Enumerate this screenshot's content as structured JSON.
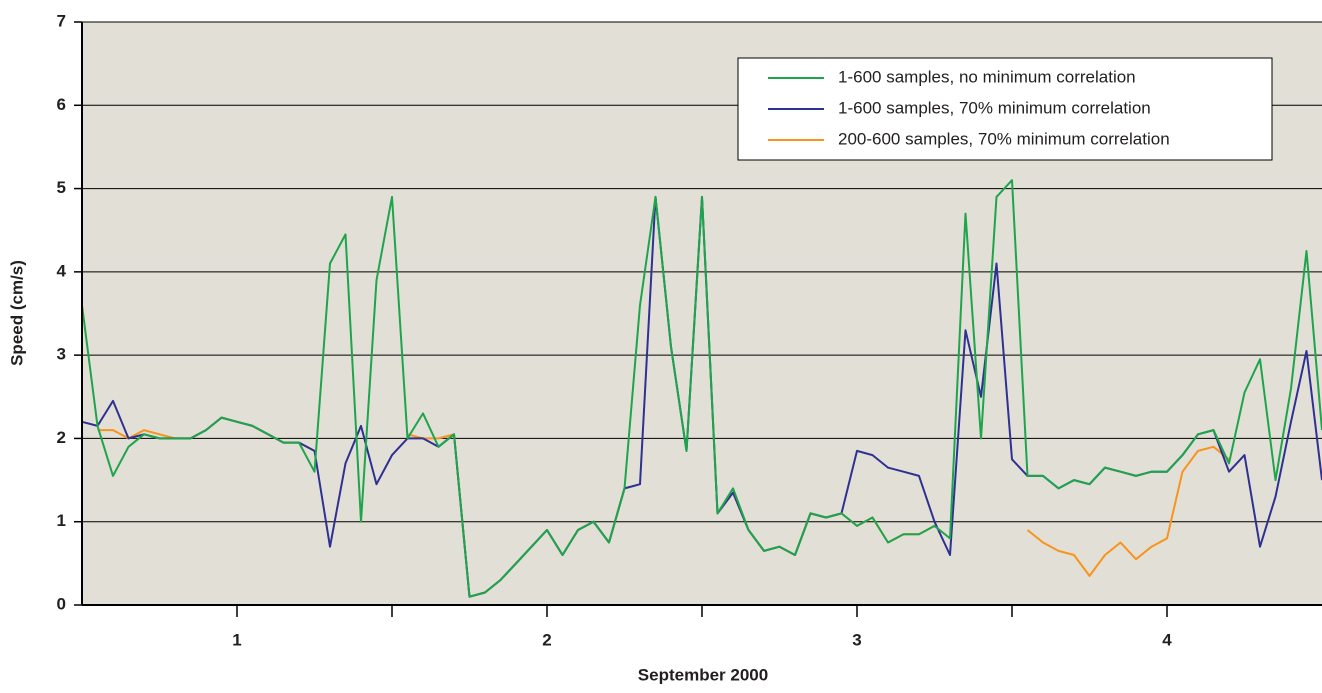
{
  "chart_data": {
    "type": "line",
    "ylabel": "Speed (cm/s)",
    "xlabel": "September 2000",
    "xlim": [
      0.5,
      4.5
    ],
    "xticks": [
      1,
      2,
      3,
      4
    ],
    "xminorticks": [
      1.5,
      2.5,
      3.5
    ],
    "ylim": [
      0,
      7
    ],
    "yticks": [
      0,
      1,
      2,
      3,
      4,
      5,
      6,
      7
    ],
    "grid": true,
    "legend": "upper right",
    "background": "#e2dfd6",
    "x": [
      0.5,
      0.55,
      0.6,
      0.65,
      0.7,
      0.75,
      0.8,
      0.85,
      0.9,
      0.95,
      1,
      1.05,
      1.1,
      1.15,
      1.2,
      1.25,
      1.3,
      1.35,
      1.4,
      1.45,
      1.5,
      1.55,
      1.6,
      1.65,
      1.7,
      1.75,
      1.8,
      1.85,
      1.9,
      1.95,
      2,
      2.05,
      2.1,
      2.15,
      2.2,
      2.25,
      2.3,
      2.35,
      2.4,
      2.45,
      2.5,
      2.55,
      2.6,
      2.65,
      2.7,
      2.75,
      2.8,
      2.85,
      2.9,
      2.95,
      3,
      3.05,
      3.1,
      3.15,
      3.2,
      3.25,
      3.3,
      3.35,
      3.4,
      3.45,
      3.5,
      3.55,
      3.6,
      3.65,
      3.7,
      3.75,
      3.8,
      3.85,
      3.9,
      3.95,
      4,
      4.05,
      4.1,
      4.15,
      4.2,
      4.25,
      4.3,
      4.35,
      4.4,
      4.45,
      4.5
    ],
    "series": [
      {
        "name": "1-600 samples, no minimum correlation",
        "color": "#1ea54c",
        "values": [
          3.6,
          2.15,
          1.55,
          1.9,
          2.05,
          2.0,
          2.0,
          2.0,
          2.1,
          2.25,
          2.2,
          2.15,
          2.05,
          1.95,
          1.95,
          1.6,
          4.1,
          4.45,
          1.0,
          3.9,
          4.9,
          2.0,
          2.3,
          1.9,
          2.05,
          0.1,
          0.15,
          0.3,
          0.5,
          0.7,
          0.9,
          0.6,
          0.9,
          1.0,
          0.75,
          1.4,
          3.6,
          4.9,
          3.1,
          1.85,
          4.9,
          1.1,
          1.4,
          0.9,
          0.65,
          0.7,
          0.6,
          1.1,
          1.05,
          1.1,
          0.95,
          1.05,
          0.75,
          0.85,
          0.85,
          0.95,
          0.8,
          4.7,
          2.0,
          4.9,
          5.1,
          1.55,
          1.55,
          1.4,
          1.5,
          1.45,
          1.65,
          1.6,
          1.55,
          1.6,
          1.6,
          1.8,
          2.05,
          2.1,
          1.7,
          2.55,
          2.95,
          1.5,
          2.6,
          4.25,
          2.1
        ]
      },
      {
        "name": "1-600 samples, 70% minimum correlation",
        "color": "#2e3192",
        "values": [
          2.2,
          2.15,
          2.45,
          2.0,
          2.05,
          2.0,
          2.0,
          2.0,
          2.1,
          2.25,
          2.2,
          2.15,
          2.05,
          1.95,
          1.95,
          1.85,
          0.7,
          1.7,
          2.15,
          1.45,
          1.8,
          2.0,
          2.0,
          1.9,
          2.05,
          0.1,
          0.15,
          0.3,
          0.5,
          0.7,
          0.9,
          0.6,
          0.9,
          1.0,
          0.75,
          1.4,
          1.45,
          4.9,
          3.1,
          1.85,
          4.9,
          1.1,
          1.35,
          0.9,
          0.65,
          0.7,
          0.6,
          1.1,
          1.05,
          1.1,
          1.85,
          1.8,
          1.65,
          1.6,
          1.55,
          1.0,
          0.6,
          3.3,
          2.5,
          4.1,
          1.75,
          1.55,
          1.55,
          1.4,
          1.5,
          1.45,
          1.65,
          1.6,
          1.55,
          1.6,
          1.6,
          1.8,
          2.05,
          2.1,
          1.6,
          1.8,
          0.7,
          1.3,
          2.2,
          3.05,
          1.5
        ]
      },
      {
        "name": "200-600 samples, 70% minimum correlation",
        "color": "#f7941d",
        "values": [
          null,
          2.1,
          2.1,
          2.0,
          2.1,
          2.05,
          2.0,
          2.0,
          2.1,
          2.25,
          2.2,
          2.15,
          2.05,
          1.95,
          1.95,
          1.85,
          null,
          null,
          null,
          null,
          null,
          2.05,
          2.0,
          2.0,
          2.05,
          0.1,
          0.15,
          0.3,
          0.5,
          0.7,
          0.9,
          0.6,
          0.9,
          1.0,
          0.75,
          1.4,
          null,
          null,
          null,
          null,
          null,
          1.1,
          1.35,
          0.9,
          0.65,
          0.7,
          0.6,
          1.1,
          1.05,
          1.1,
          0.95,
          1.05,
          0.75,
          0.85,
          0.85,
          0.95,
          null,
          null,
          null,
          null,
          null,
          0.9,
          0.75,
          0.65,
          0.6,
          0.35,
          0.6,
          0.75,
          0.55,
          0.7,
          0.8,
          1.6,
          1.85,
          1.9,
          1.75,
          null,
          null,
          null,
          null,
          null,
          null
        ]
      }
    ]
  }
}
